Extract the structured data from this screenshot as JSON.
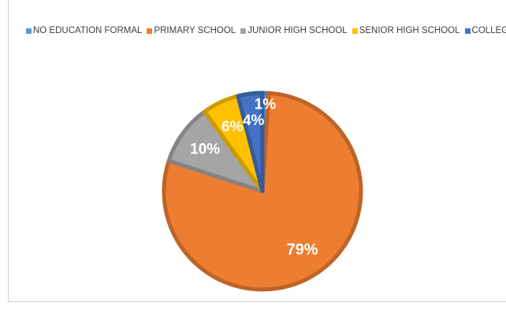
{
  "chart_data": {
    "type": "pie",
    "title": "",
    "legend_position": "top",
    "categories": [
      "NO EDUCATION FORMAL",
      "PRIMARY SCHOOL",
      "JUNIOR HIGH SCHOOL",
      "SENIOR HIGH SCHOOL",
      "COLLEGE"
    ],
    "values": [
      1,
      79,
      10,
      6,
      4
    ],
    "data_labels": [
      "1%",
      "79%",
      "10%",
      "6%",
      "4%"
    ],
    "colors": [
      "#5B9BD5",
      "#ED7D31",
      "#A5A5A5",
      "#FFC000",
      "#4472C4"
    ]
  }
}
